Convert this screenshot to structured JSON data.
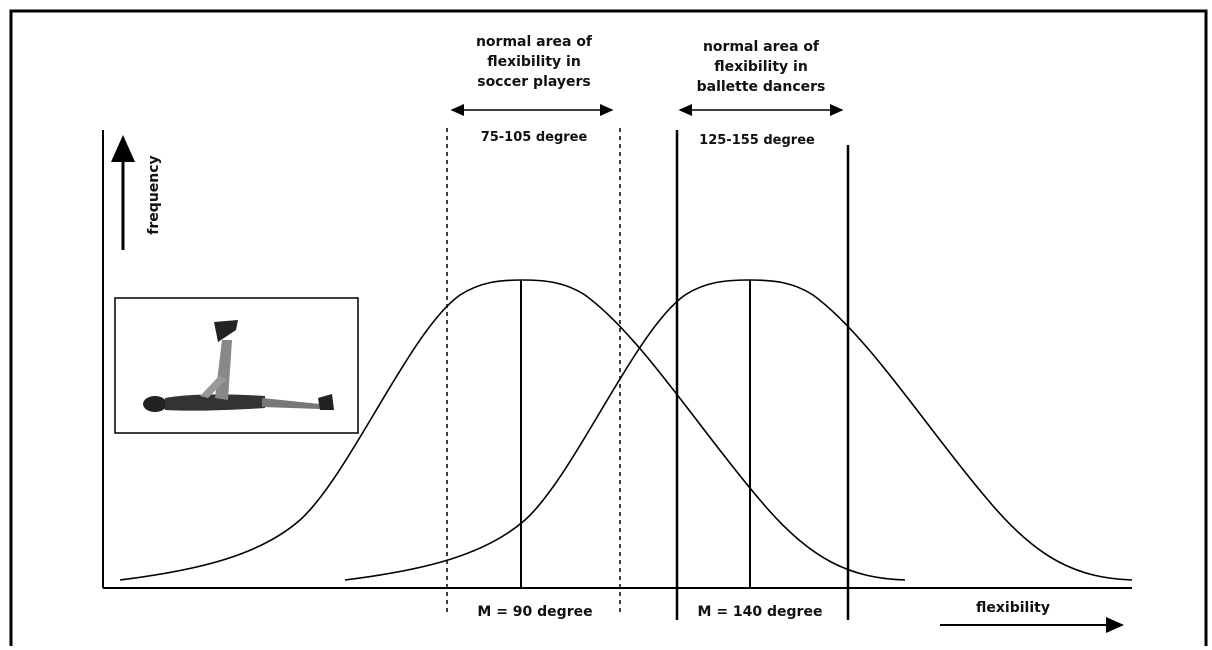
{
  "soccer": {
    "title_lines": [
      "normal area of",
      "flexibility in",
      "soccer players"
    ],
    "range": "75-105 degree",
    "mean": "M = 90 degree"
  },
  "dancers": {
    "title_lines": [
      "normal area of",
      "flexibility in",
      "ballette dancers"
    ],
    "range": "125-155 degree",
    "mean": "M = 140 degree"
  },
  "axes": {
    "y_label": "frequency",
    "x_label": "flexibility"
  }
}
